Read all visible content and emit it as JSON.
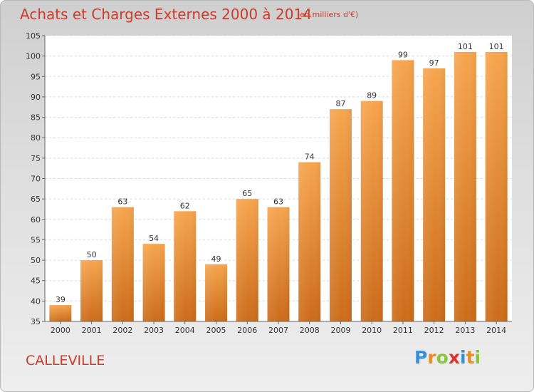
{
  "header": {
    "title": "Achats et Charges Externes 2000 à 2014",
    "subtitle": "(en milliers d'€)"
  },
  "footer": {
    "place": "CALLEVILLE",
    "logo": [
      "P",
      "r",
      "o",
      "x",
      "i",
      "t",
      "i"
    ]
  },
  "colors": {
    "title": "#cc3b2b",
    "bar_top": "#f6a54e",
    "bar_bottom": "#cc6c1a",
    "logo": [
      "#3b8fd6",
      "#f08a1c",
      "#8bc43f",
      "#e2302c",
      "#3b8fd6",
      "#f08a1c",
      "#8bc43f"
    ]
  },
  "chart_data": {
    "type": "bar",
    "categories": [
      "2000",
      "2001",
      "2002",
      "2003",
      "2004",
      "2005",
      "2006",
      "2007",
      "2008",
      "2009",
      "2010",
      "2011",
      "2012",
      "2013",
      "2014"
    ],
    "values": [
      39,
      50,
      63,
      54,
      62,
      49,
      65,
      63,
      74,
      87,
      89,
      99,
      97,
      101,
      101
    ],
    "title": "Achats et Charges Externes 2000 à 2014",
    "xlabel": "",
    "ylabel": "",
    "ylim": [
      35,
      105
    ],
    "yticks": [
      35,
      40,
      45,
      50,
      55,
      60,
      65,
      70,
      75,
      80,
      85,
      90,
      95,
      100,
      105
    ],
    "grid": true
  }
}
